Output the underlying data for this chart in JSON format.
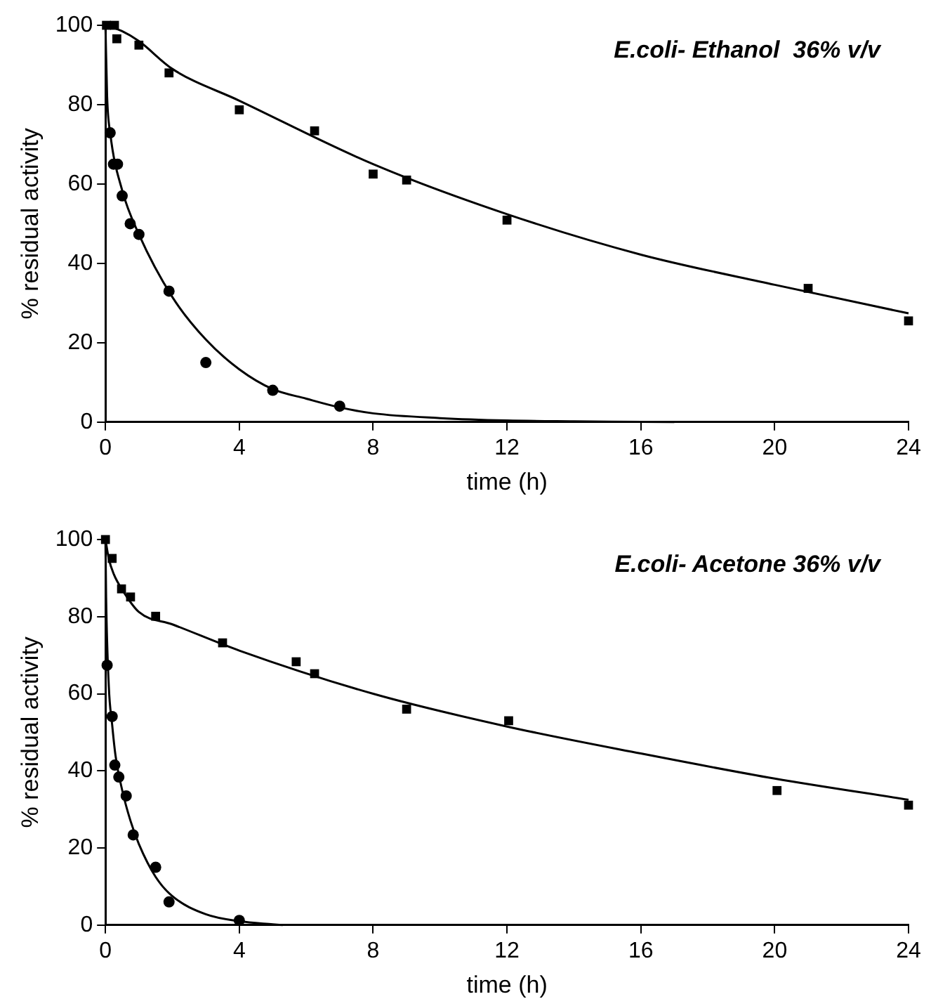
{
  "chart_data": [
    {
      "type": "scatter",
      "title": "E.coli- Ethanol  36% v/v",
      "xlabel": "time (h)",
      "ylabel": "% residual activity",
      "xlim": [
        0,
        24
      ],
      "xticks": [
        0,
        4,
        8,
        12,
        16,
        20,
        24
      ],
      "ylim": [
        0,
        100
      ],
      "yticks": [
        0,
        20,
        40,
        60,
        80,
        100
      ],
      "grid": false,
      "legend": false,
      "series": [
        {
          "marker": "square",
          "color": "#000000",
          "x": [
            0.03,
            0.27,
            0.34,
            1.0,
            1.9,
            4.0,
            6.25,
            8.0,
            9.0,
            12.0,
            21.0,
            24.0
          ],
          "values": [
            100,
            100,
            96.6,
            95,
            88,
            78.7,
            73.4,
            62.5,
            61,
            50.9,
            33.7,
            25.5
          ]
        },
        {
          "marker": "circle",
          "color": "#000000",
          "x": [
            0.14,
            0.24,
            0.36,
            0.5,
            0.74,
            1.0,
            1.9,
            3.0,
            5.0,
            7.0
          ],
          "values": [
            72.9,
            65,
            65,
            57,
            50,
            47.3,
            33,
            15,
            8,
            4
          ]
        },
        {
          "type": "line",
          "marker": "none",
          "color": "#000000",
          "x": [
            0,
            0.5,
            1,
            2,
            4,
            8,
            12,
            16,
            20,
            24
          ],
          "values": [
            100,
            98.5,
            96,
            89,
            81,
            65,
            52.4,
            42.2,
            34.6,
            27.4
          ]
        },
        {
          "type": "line",
          "marker": "none",
          "color": "#000000",
          "x": [
            0,
            0.05,
            0.14,
            0.5,
            1,
            2,
            3,
            4,
            5,
            6,
            7,
            8,
            10,
            12,
            14,
            17
          ],
          "values": [
            100,
            82,
            73,
            58.4,
            47.3,
            31.5,
            20.8,
            13.3,
            8.3,
            5.9,
            3.7,
            2.2,
            1,
            0.4,
            0.2,
            0
          ]
        }
      ]
    },
    {
      "type": "scatter",
      "title": "E.coli- Acetone 36% v/v",
      "xlabel": "time (h)",
      "ylabel": "% residual activity",
      "xlim": [
        0,
        24
      ],
      "xticks": [
        0,
        4,
        8,
        12,
        16,
        20,
        24
      ],
      "ylim": [
        0,
        100
      ],
      "yticks": [
        0,
        20,
        40,
        60,
        80,
        100
      ],
      "grid": false,
      "legend": false,
      "series": [
        {
          "marker": "square",
          "color": "#000000",
          "x": [
            0,
            0.2,
            0.48,
            0.75,
            1.5,
            3.5,
            5.7,
            6.25,
            9.0,
            12.05,
            20.07,
            24.0
          ],
          "values": [
            100,
            95.1,
            87.2,
            85.1,
            80.1,
            73.2,
            68.3,
            65.2,
            56,
            53,
            34.9,
            31.1
          ]
        },
        {
          "marker": "circle",
          "color": "#000000",
          "x": [
            0.05,
            0.2,
            0.28,
            0.4,
            0.62,
            0.83,
            1.5,
            1.9,
            4.0
          ],
          "values": [
            67.4,
            54.1,
            41.5,
            38.4,
            33.5,
            23.4,
            15,
            6,
            1.2
          ]
        },
        {
          "type": "line",
          "marker": "none",
          "color": "#000000",
          "x": [
            0,
            0.1,
            0.25,
            0.5,
            1,
            2,
            4,
            8,
            12,
            16,
            20,
            24
          ],
          "values": [
            100,
            95,
            91,
            87,
            81.2,
            78,
            71.2,
            60,
            51.5,
            44.5,
            38,
            32.5
          ]
        },
        {
          "type": "line",
          "marker": "none",
          "color": "#000000",
          "x": [
            0,
            0.02,
            0.1,
            0.2,
            0.3,
            0.5,
            0.75,
            1,
            1.5,
            2,
            3,
            4,
            5,
            5.3
          ],
          "values": [
            100,
            85,
            62,
            52,
            44,
            35,
            27,
            21,
            12.5,
            7.5,
            2.8,
            1,
            0.2,
            0
          ]
        }
      ]
    }
  ]
}
